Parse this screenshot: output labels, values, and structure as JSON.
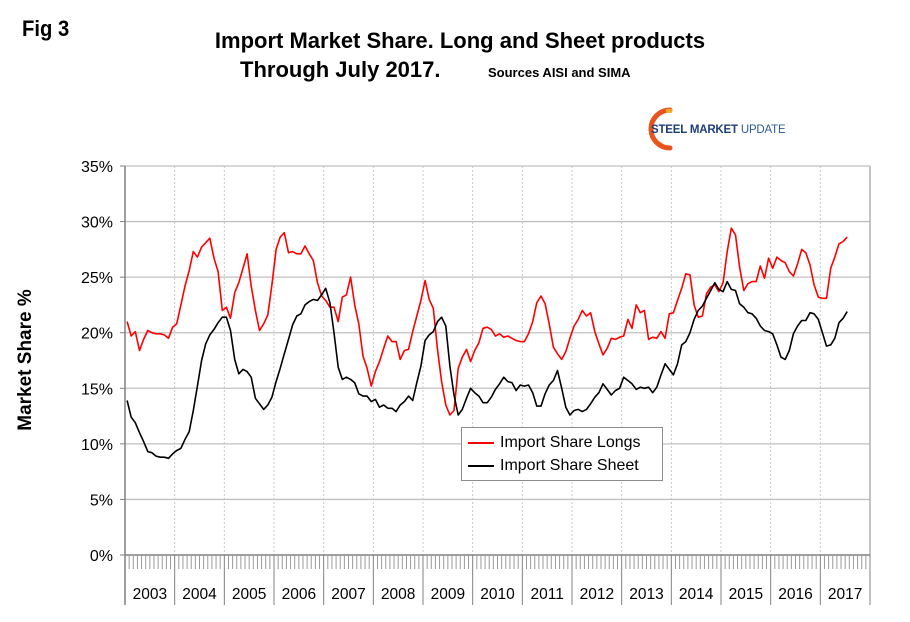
{
  "figure_label": "Fig 3",
  "title_line1": "Import Market Share. Long and Sheet products",
  "title_line2": "Through July 2017.",
  "sources_note": "Sources AISI and SIMA",
  "logo": {
    "text_bold": "STEEL MARKET",
    "text_light": "UPDATE",
    "arc_color": "#e8541c"
  },
  "chart_data": {
    "type": "line",
    "title": "Import Market Share. Long and Sheet products Through July 2017.",
    "subtitle": "Sources AISI and SIMA",
    "xlabel": "",
    "ylabel": "Market Share %",
    "ylim": [
      0,
      35
    ],
    "yticks": [
      "0%",
      "5%",
      "10%",
      "15%",
      "20%",
      "25%",
      "30%",
      "35%"
    ],
    "ytick_values": [
      0,
      5,
      10,
      15,
      20,
      25,
      30,
      35
    ],
    "x_start": "2003-01",
    "x_end": "2017-07",
    "x_frequency": "monthly",
    "year_labels": [
      "2003",
      "2004",
      "2005",
      "2006",
      "2007",
      "2008",
      "2009",
      "2010",
      "2011",
      "2012",
      "2013",
      "2014",
      "2015",
      "2016",
      "2017"
    ],
    "grid": true,
    "legend_position": "bottom-center",
    "series": [
      {
        "name": "Import Share Longs",
        "color": "#ff0000",
        "values": [
          21.0,
          19.7,
          20.1,
          18.4,
          19.4,
          20.2,
          20.0,
          19.9,
          19.9,
          19.8,
          19.5,
          20.5,
          20.8,
          22.5,
          24.2,
          25.6,
          27.3,
          26.8,
          27.7,
          28.1,
          28.5,
          26.7,
          25.5,
          22.0,
          22.3,
          21.3,
          23.6,
          24.5,
          25.8,
          27.1,
          24.2,
          22.0,
          20.2,
          20.8,
          21.6,
          24.3,
          27.5,
          28.6,
          29.0,
          27.2,
          27.3,
          27.1,
          27.1,
          27.8,
          27.1,
          26.5,
          24.5,
          23.3,
          22.9,
          22.3,
          22.3,
          21.0,
          23.2,
          23.4,
          25.0,
          22.5,
          20.8,
          17.9,
          16.8,
          15.2,
          16.5,
          17.4,
          18.6,
          19.7,
          19.2,
          19.2,
          17.6,
          18.4,
          18.5,
          20.1,
          21.5,
          22.9,
          24.7,
          23.0,
          22.2,
          18.5,
          15.6,
          13.5,
          12.6,
          13.0,
          16.8,
          17.8,
          18.5,
          17.4,
          18.4,
          19.1,
          20.4,
          20.5,
          20.3,
          19.7,
          19.9,
          19.6,
          19.7,
          19.5,
          19.3,
          19.2,
          19.2,
          19.9,
          21.0,
          22.7,
          23.3,
          22.6,
          20.8,
          18.7,
          18.1,
          17.6,
          18.3,
          19.5,
          20.6,
          21.2,
          22.0,
          21.5,
          21.8,
          20.1,
          19.0,
          18.0,
          18.6,
          19.5,
          19.4,
          19.6,
          19.7,
          21.2,
          20.4,
          22.5,
          21.8,
          22.0,
          19.4,
          19.6,
          19.5,
          20.1,
          19.5,
          21.7,
          21.8,
          22.9,
          24.0,
          25.3,
          25.2,
          22.5,
          21.4,
          21.5,
          23.5,
          24.1,
          24.3,
          23.7,
          24.5,
          27.3,
          29.4,
          28.8,
          25.9,
          23.8,
          24.4,
          24.6,
          24.6,
          26.0,
          24.9,
          26.7,
          25.8,
          26.8,
          26.5,
          26.3,
          25.5,
          25.1,
          26.2,
          27.5,
          27.2,
          26.1,
          24.3,
          23.2,
          23.1,
          23.1,
          25.8,
          26.8,
          28.0,
          28.2,
          28.6
        ]
      },
      {
        "name": "Import Share Sheet",
        "color": "#000000",
        "values": [
          13.9,
          12.4,
          11.9,
          11.0,
          10.2,
          9.3,
          9.2,
          8.9,
          8.8,
          8.8,
          8.7,
          9.1,
          9.4,
          9.6,
          10.4,
          11.1,
          13.0,
          15.2,
          17.5,
          19.0,
          19.8,
          20.3,
          20.9,
          21.4,
          21.4,
          20.2,
          17.6,
          16.3,
          16.7,
          16.5,
          16.0,
          14.1,
          13.6,
          13.1,
          13.5,
          14.2,
          15.6,
          16.8,
          18.1,
          19.4,
          20.7,
          21.5,
          21.7,
          22.5,
          22.8,
          23.0,
          22.9,
          23.4,
          24.0,
          22.7,
          20.0,
          16.9,
          15.8,
          16.0,
          15.8,
          15.5,
          14.5,
          14.3,
          14.3,
          13.8,
          14.0,
          13.3,
          13.5,
          13.2,
          13.2,
          12.9,
          13.5,
          13.8,
          14.3,
          13.9,
          15.5,
          17.0,
          19.3,
          19.8,
          20.1,
          21.0,
          21.4,
          20.6,
          17.0,
          14.4,
          12.6,
          13.1,
          14.1,
          15.0,
          14.6,
          14.3,
          13.7,
          13.7,
          14.2,
          14.9,
          15.4,
          16.0,
          15.6,
          15.5,
          14.8,
          15.3,
          15.2,
          15.3,
          14.6,
          13.4,
          13.4,
          14.5,
          15.3,
          15.7,
          16.6,
          15.0,
          13.3,
          12.6,
          13.0,
          13.1,
          12.9,
          13.1,
          13.6,
          14.2,
          14.6,
          15.4,
          14.9,
          14.4,
          14.8,
          15.0,
          16.0,
          15.7,
          15.4,
          14.9,
          15.1,
          15.0,
          15.1,
          14.6,
          15.1,
          16.2,
          17.2,
          16.7,
          16.2,
          17.2,
          18.9,
          19.2,
          20.0,
          21.2,
          22.0,
          22.4,
          23.1,
          23.8,
          24.5,
          23.9,
          23.7,
          24.6,
          23.9,
          23.8,
          22.6,
          22.3,
          21.8,
          21.7,
          21.3,
          20.6,
          20.2,
          20.1,
          19.9,
          18.9,
          17.8,
          17.6,
          18.4,
          19.9,
          20.6,
          21.1,
          21.1,
          21.8,
          21.7,
          21.2,
          20.0,
          18.8,
          18.9,
          19.5,
          20.9,
          21.3,
          21.9
        ]
      }
    ]
  }
}
